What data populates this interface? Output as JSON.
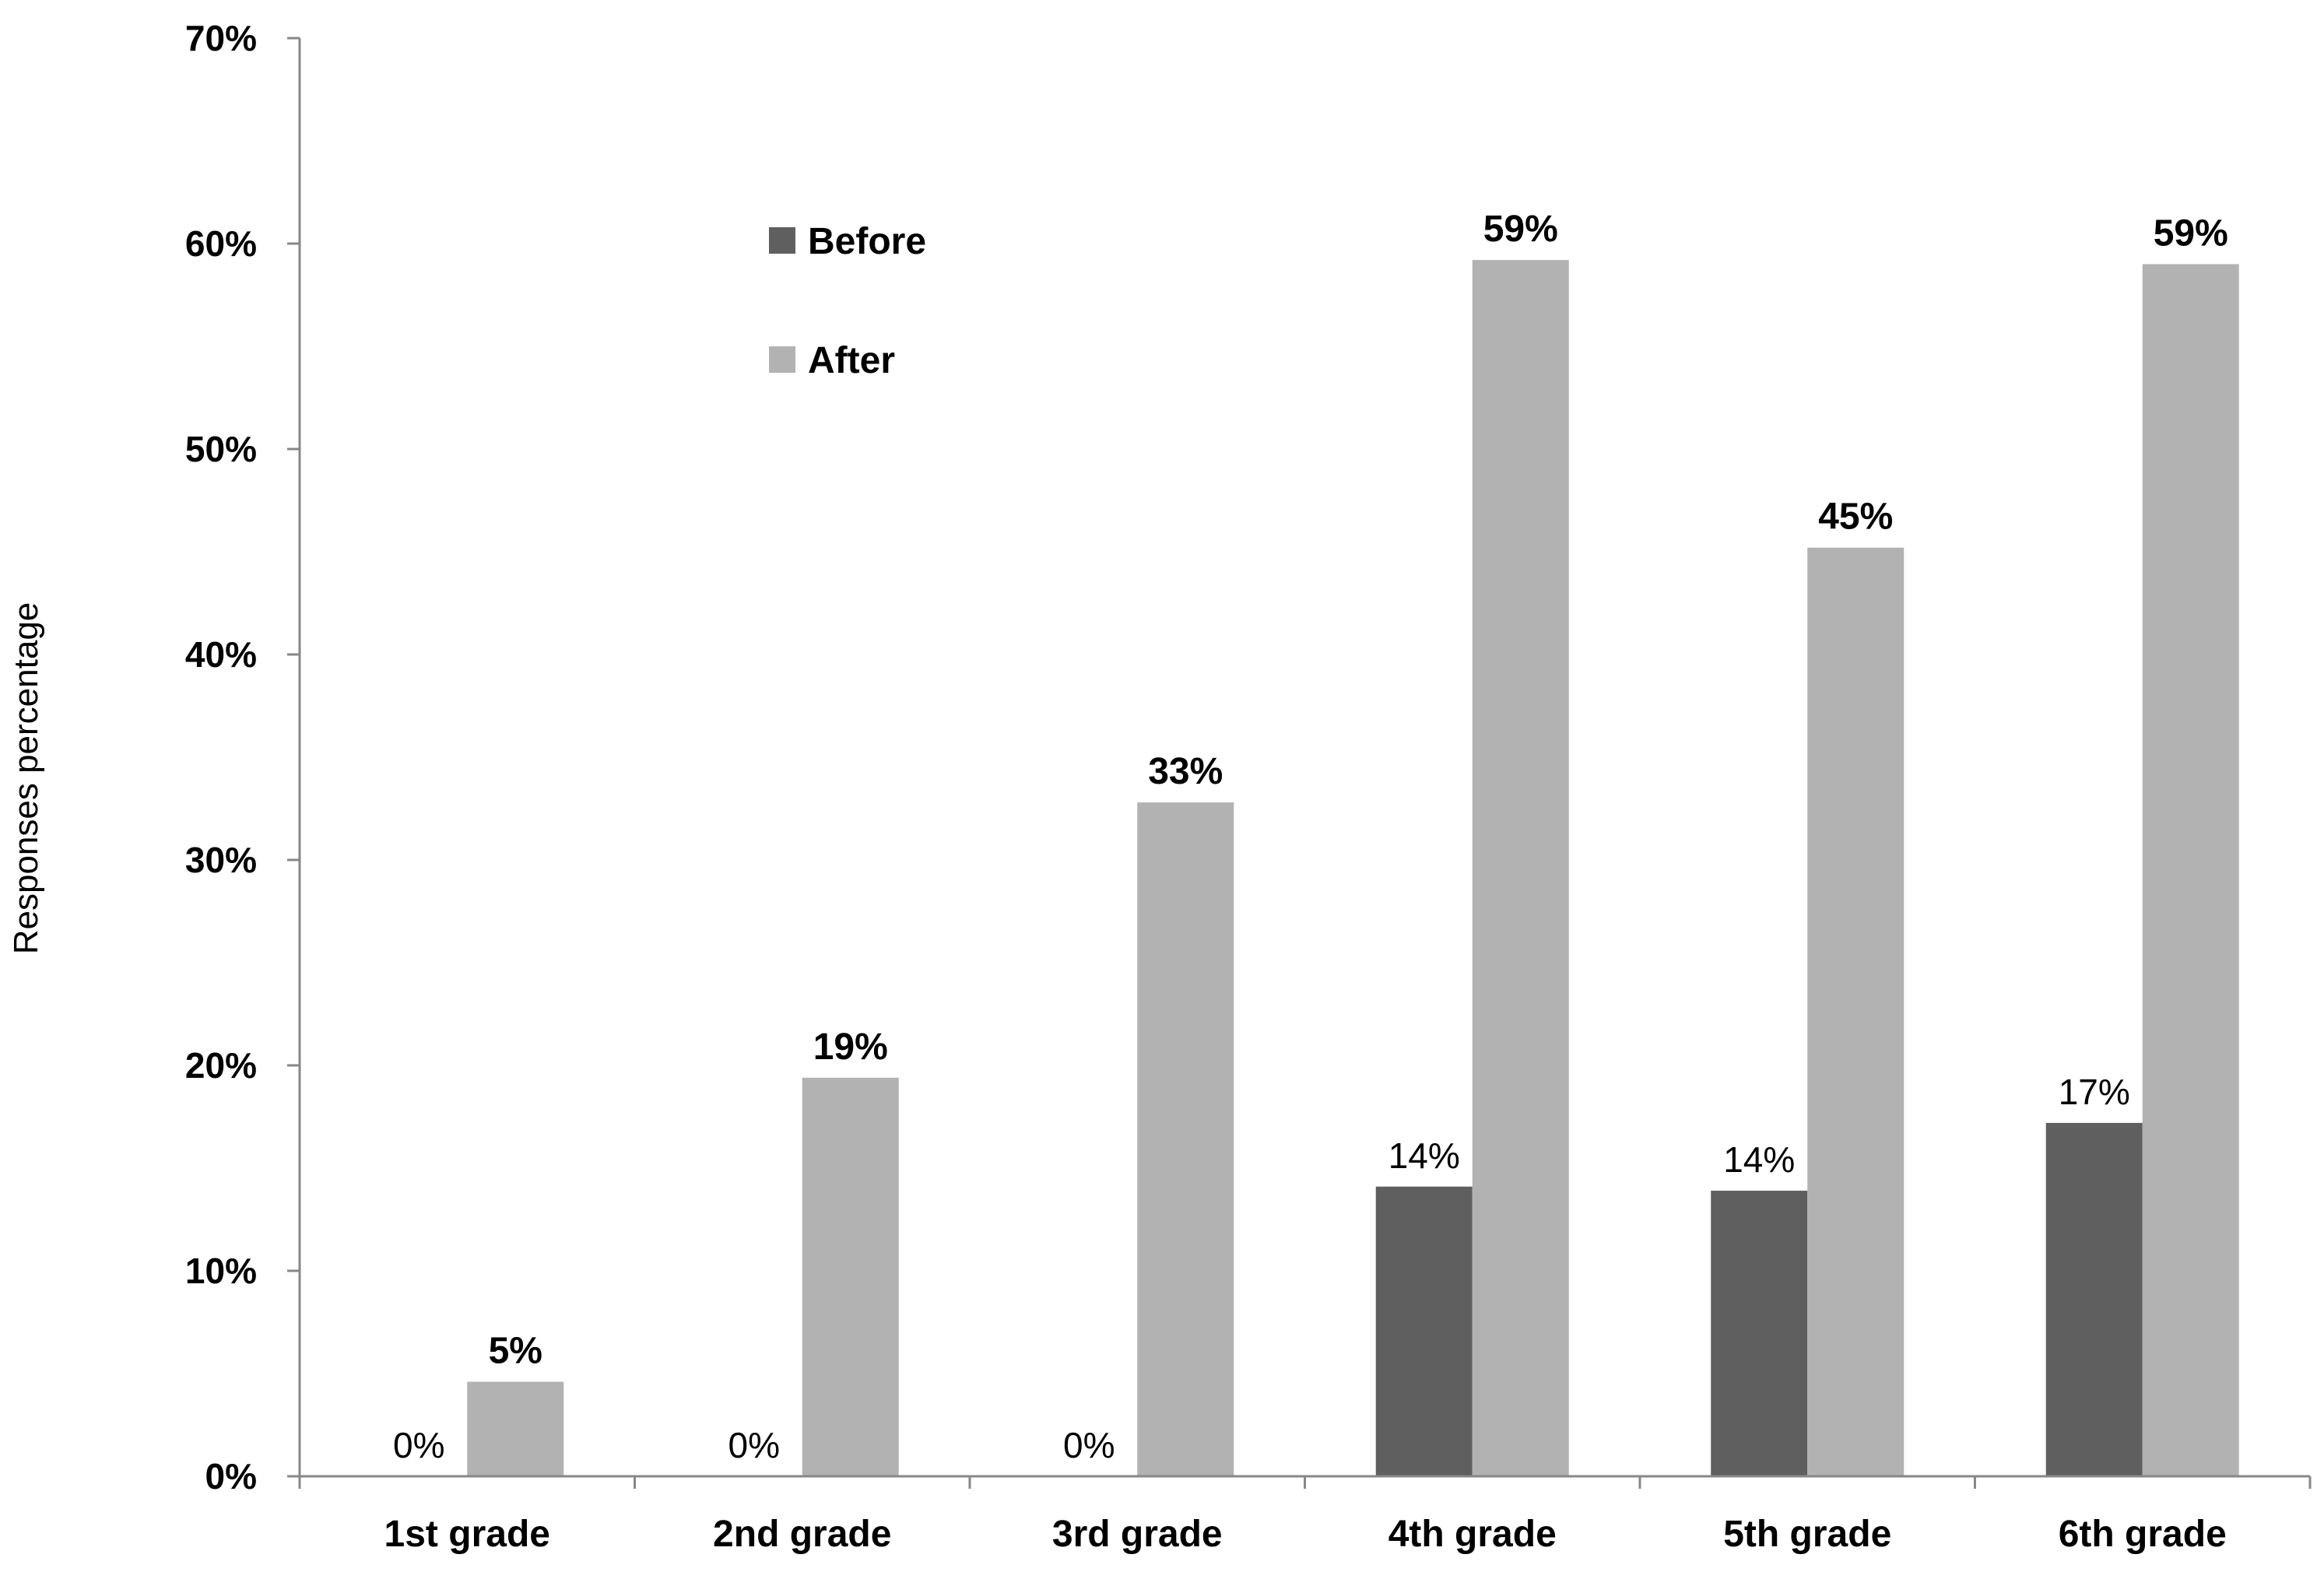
{
  "chart_data": {
    "type": "bar",
    "title": "",
    "xlabel": "",
    "ylabel": "Responses percentage",
    "ylim": [
      0,
      70
    ],
    "yticks": [
      0,
      10,
      20,
      30,
      40,
      50,
      60,
      70
    ],
    "ytick_labels": [
      "0%",
      "10%",
      "20%",
      "30%",
      "40%",
      "50%",
      "60%",
      "70%"
    ],
    "categories": [
      "1st grade",
      "2nd grade",
      "3rd grade",
      "4th grade",
      "5th grade",
      "6th grade"
    ],
    "series": [
      {
        "name": "Before",
        "color": "#5f5f5f",
        "values": [
          0,
          0,
          0,
          14.1,
          13.9,
          17.2
        ],
        "labels": [
          "0%",
          "0%",
          "0%",
          "14%",
          "14%",
          "17%"
        ]
      },
      {
        "name": "After",
        "color": "#b2b2b2",
        "values": [
          4.6,
          19.4,
          32.8,
          59.2,
          45.2,
          59.0
        ],
        "labels": [
          "5%",
          "19%",
          "33%",
          "59%",
          "45%",
          "59%"
        ]
      }
    ],
    "legend_position": "upper-left inside plot",
    "grid": false
  }
}
